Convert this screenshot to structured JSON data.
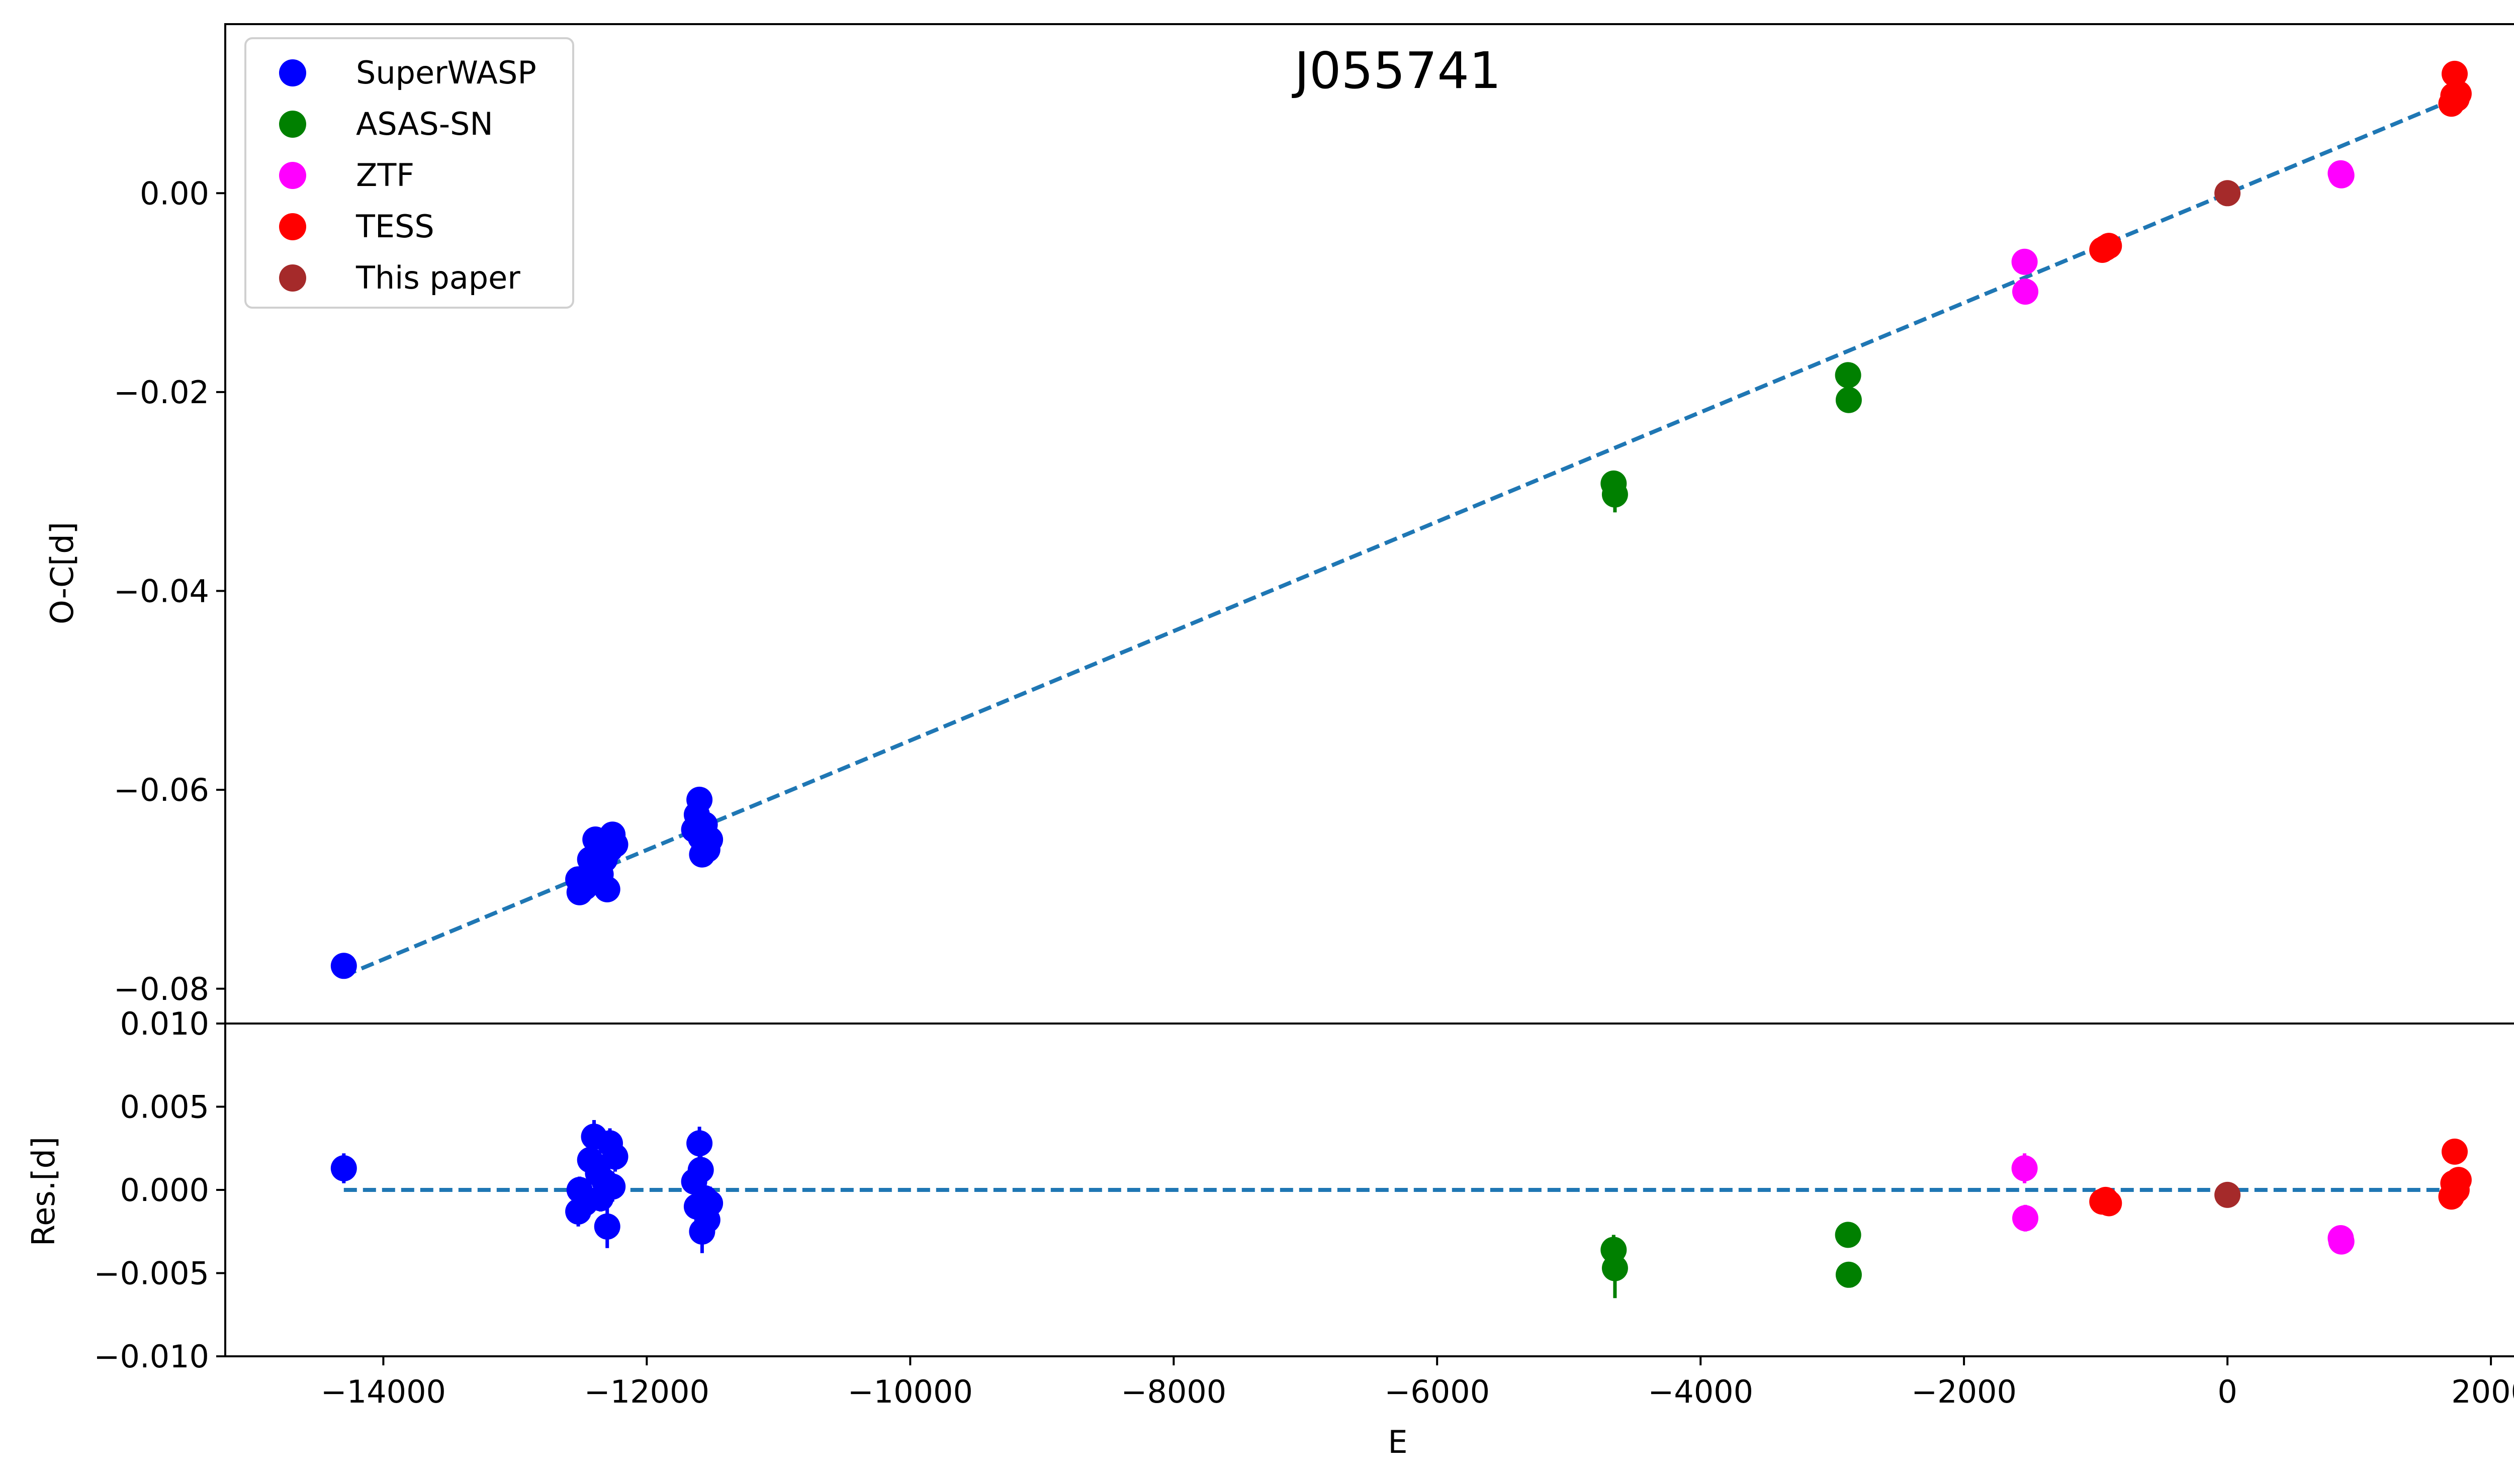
{
  "figure": {
    "title": "J055741",
    "xlabel": "E",
    "top_ylabel": "O-C[d]",
    "bottom_ylabel": "Res.[d]"
  },
  "legend": {
    "placement": "top-left",
    "items": [
      {
        "label": "SuperWASP",
        "color": "#0000ff"
      },
      {
        "label": "ASAS-SN",
        "color": "#008000"
      },
      {
        "label": "ZTF",
        "color": "#ff00ff"
      },
      {
        "label": "TESS",
        "color": "#ff0000"
      },
      {
        "label": "This paper",
        "color": "#a52a2a"
      }
    ]
  },
  "chart_data": [
    {
      "type": "scatter",
      "panel": "top",
      "title": "J055741",
      "xlabel": "",
      "ylabel": "O-C[d]",
      "xlim": [
        -15200,
        2580
      ],
      "ylim": [
        -0.0835,
        0.017
      ],
      "xticks": [
        -14000,
        -12000,
        -10000,
        -8000,
        -6000,
        -4000,
        -2000,
        0,
        2000
      ],
      "yticks": [
        0.0,
        -0.02,
        -0.04,
        -0.06,
        -0.08
      ],
      "ytick_labels": [
        "0.00",
        "−0.02",
        "−0.04",
        "−0.06",
        "−0.08"
      ],
      "grid": false,
      "fit_line": {
        "style": "dashed",
        "color": "#1f77b4",
        "x": [
          -14300,
          1730
        ],
        "y": [
          -0.0787,
          0.0095
        ]
      },
      "series": [
        {
          "name": "SuperWASP",
          "color": "#0000ff",
          "points": [
            {
              "x": -14300,
              "y": -0.0777,
              "err": 0.0008
            },
            {
              "x": -12520,
              "y": -0.069,
              "err": 0.0009
            },
            {
              "x": -12510,
              "y": -0.0703,
              "err": 0.0009
            },
            {
              "x": -12470,
              "y": -0.0698,
              "err": 0.0008
            },
            {
              "x": -12430,
              "y": -0.067,
              "err": 0.0009
            },
            {
              "x": -12390,
              "y": -0.065,
              "err": 0.001
            },
            {
              "x": -12370,
              "y": -0.066,
              "err": 0.0009
            },
            {
              "x": -12350,
              "y": -0.0685,
              "err": 0.0008
            },
            {
              "x": -12320,
              "y": -0.067,
              "err": 0.001
            },
            {
              "x": -12300,
              "y": -0.07,
              "err": 0.0012
            },
            {
              "x": -12280,
              "y": -0.066,
              "err": 0.0009
            },
            {
              "x": -12260,
              "y": -0.0645,
              "err": 0.0009
            },
            {
              "x": -12240,
              "y": -0.0655,
              "err": 0.0009
            },
            {
              "x": -11640,
              "y": -0.064,
              "err": 0.0009
            },
            {
              "x": -11620,
              "y": -0.0625,
              "err": 0.0009
            },
            {
              "x": -11600,
              "y": -0.061,
              "err": 0.001
            },
            {
              "x": -11590,
              "y": -0.0648,
              "err": 0.0009
            },
            {
              "x": -11580,
              "y": -0.0665,
              "err": 0.0011
            },
            {
              "x": -11560,
              "y": -0.0635,
              "err": 0.0009
            },
            {
              "x": -11540,
              "y": -0.066,
              "err": 0.0009
            },
            {
              "x": -11520,
              "y": -0.065,
              "err": 0.001
            }
          ]
        },
        {
          "name": "ASAS-SN",
          "color": "#008000",
          "points": [
            {
              "x": -4660,
              "y": -0.0292,
              "err": 0.0009
            },
            {
              "x": -4650,
              "y": -0.0303,
              "err": 0.0018
            },
            {
              "x": -2880,
              "y": -0.0183,
              "err": 0.0006
            },
            {
              "x": -2875,
              "y": -0.0208,
              "err": 0.0006
            }
          ]
        },
        {
          "name": "ZTF",
          "color": "#ff00ff",
          "points": [
            {
              "x": -1540,
              "y": -0.0069,
              "err": 0.0009
            },
            {
              "x": -1535,
              "y": -0.0099,
              "err": 0.0008
            },
            {
              "x": 860,
              "y": 0.002,
              "err": 0.0006
            },
            {
              "x": 865,
              "y": 0.0018,
              "err": 0.0006
            }
          ]
        },
        {
          "name": "TESS",
          "color": "#ff0000",
          "points": [
            {
              "x": -950,
              "y": -0.0057,
              "err": 0.0004
            },
            {
              "x": -925,
              "y": -0.0055,
              "err": 0.0004
            },
            {
              "x": -900,
              "y": -0.0053,
              "err": 0.0004
            },
            {
              "x": 1700,
              "y": 0.009,
              "err": 0.0004
            },
            {
              "x": 1715,
              "y": 0.0098,
              "err": 0.0004
            },
            {
              "x": 1725,
              "y": 0.012,
              "err": 0.0004
            },
            {
              "x": 1740,
              "y": 0.0095,
              "err": 0.0004
            },
            {
              "x": 1755,
              "y": 0.01,
              "err": 0.0004
            }
          ]
        },
        {
          "name": "This paper",
          "color": "#a52a2a",
          "points": [
            {
              "x": 0,
              "y": 0.0,
              "err": 0.0003
            }
          ]
        }
      ]
    },
    {
      "type": "scatter",
      "panel": "bottom",
      "xlabel": "E",
      "ylabel": "Res.[d]",
      "xlim": [
        -15200,
        2580
      ],
      "ylim": [
        -0.01,
        0.01
      ],
      "xticks": [
        -14000,
        -12000,
        -10000,
        -8000,
        -6000,
        -4000,
        -2000,
        0,
        2000
      ],
      "xtick_labels": [
        "−14000",
        "−12000",
        "−10000",
        "−8000",
        "−6000",
        "−4000",
        "−2000",
        "0",
        "2000"
      ],
      "yticks": [
        0.01,
        0.005,
        0.0,
        -0.005,
        -0.01
      ],
      "ytick_labels": [
        "0.010",
        "0.005",
        "0.000",
        "−0.005",
        "−0.010"
      ],
      "grid": false,
      "fit_line": {
        "style": "dashed",
        "color": "#1f77b4",
        "x": [
          -14300,
          1730
        ],
        "y": [
          0.0,
          0.0
        ]
      },
      "series": [
        {
          "name": "SuperWASP",
          "color": "#0000ff",
          "points": [
            {
              "x": -14300,
              "y": 0.0013,
              "err": 0.0009
            },
            {
              "x": -12520,
              "y": -0.0013,
              "err": 0.0009
            },
            {
              "x": -12510,
              "y": 0.0,
              "err": 0.0008
            },
            {
              "x": -12470,
              "y": -0.0008,
              "err": 0.0009
            },
            {
              "x": -12430,
              "y": 0.0018,
              "err": 0.0009
            },
            {
              "x": -12400,
              "y": 0.0032,
              "err": 0.001
            },
            {
              "x": -12370,
              "y": 0.001,
              "err": 0.0009
            },
            {
              "x": -12350,
              "y": -0.0005,
              "err": 0.0008
            },
            {
              "x": -12320,
              "y": 0.0005,
              "err": 0.001
            },
            {
              "x": -12300,
              "y": -0.0022,
              "err": 0.0013
            },
            {
              "x": -12280,
              "y": 0.0028,
              "err": 0.0009
            },
            {
              "x": -12260,
              "y": 0.0002,
              "err": 0.0009
            },
            {
              "x": -12240,
              "y": 0.002,
              "err": 0.0009
            },
            {
              "x": -11640,
              "y": 0.0005,
              "err": 0.0009
            },
            {
              "x": -11620,
              "y": -0.001,
              "err": 0.0009
            },
            {
              "x": -11600,
              "y": 0.0028,
              "err": 0.001
            },
            {
              "x": -11590,
              "y": 0.0012,
              "err": 0.0009
            },
            {
              "x": -11580,
              "y": -0.0025,
              "err": 0.0013
            },
            {
              "x": -11560,
              "y": -0.0005,
              "err": 0.0009
            },
            {
              "x": -11540,
              "y": -0.0018,
              "err": 0.0009
            },
            {
              "x": -11520,
              "y": -0.0008,
              "err": 0.001
            }
          ]
        },
        {
          "name": "ASAS-SN",
          "color": "#008000",
          "points": [
            {
              "x": -4660,
              "y": -0.0036,
              "err": 0.0009
            },
            {
              "x": -4650,
              "y": -0.0047,
              "err": 0.0018
            },
            {
              "x": -2880,
              "y": -0.0027,
              "err": 0.0006
            },
            {
              "x": -2875,
              "y": -0.0051,
              "err": 0.0006
            }
          ]
        },
        {
          "name": "ZTF",
          "color": "#ff00ff",
          "points": [
            {
              "x": -1540,
              "y": 0.0013,
              "err": 0.0009
            },
            {
              "x": -1535,
              "y": -0.0017,
              "err": 0.0008
            },
            {
              "x": 860,
              "y": -0.0029,
              "err": 0.0006
            },
            {
              "x": 865,
              "y": -0.0031,
              "err": 0.0006
            }
          ]
        },
        {
          "name": "TESS",
          "color": "#ff0000",
          "points": [
            {
              "x": -950,
              "y": -0.0007,
              "err": 0.0004
            },
            {
              "x": -925,
              "y": -0.0006,
              "err": 0.0004
            },
            {
              "x": -900,
              "y": -0.0008,
              "err": 0.0004
            },
            {
              "x": 1700,
              "y": -0.0004,
              "err": 0.0004
            },
            {
              "x": 1715,
              "y": 0.0004,
              "err": 0.0004
            },
            {
              "x": 1725,
              "y": 0.0023,
              "err": 0.0004
            },
            {
              "x": 1740,
              "y": 0.0,
              "err": 0.0004
            },
            {
              "x": 1755,
              "y": 0.0006,
              "err": 0.0004
            }
          ]
        },
        {
          "name": "This paper",
          "color": "#a52a2a",
          "points": [
            {
              "x": 0,
              "y": -0.0003,
              "err": 0.0003
            }
          ]
        }
      ]
    }
  ]
}
